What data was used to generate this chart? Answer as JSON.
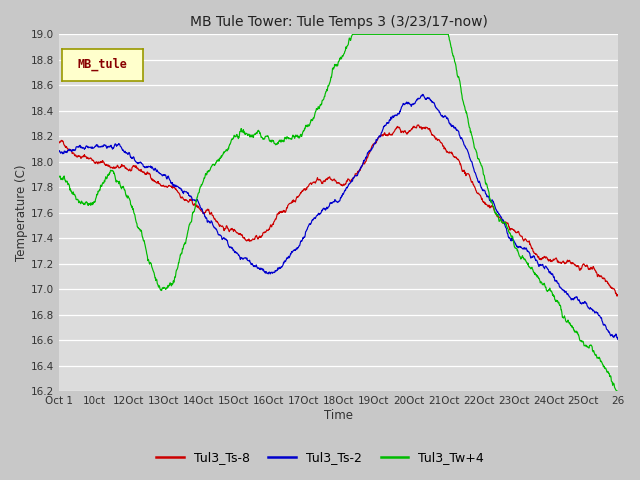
{
  "title": "MB Tule Tower: Tule Temps 3 (3/23/17-now)",
  "xlabel": "Time",
  "ylabel": "Temperature (C)",
  "ylim": [
    16.2,
    19.0
  ],
  "fig_bg": "#c8c8c8",
  "plot_bg": "#dcdcdc",
  "grid_color": "white",
  "legend_labels": [
    "Tul3_Ts-8",
    "Tul3_Ts-2",
    "Tul3_Tw+4"
  ],
  "line_colors": [
    "#cc0000",
    "#0000cc",
    "#00bb00"
  ],
  "inset_label": "MB_tule",
  "inset_bg": "#ffffcc",
  "inset_border": "#999900",
  "inset_text_color": "#880000",
  "yticks": [
    16.2,
    16.4,
    16.6,
    16.8,
    17.0,
    17.2,
    17.4,
    17.6,
    17.8,
    18.0,
    18.2,
    18.4,
    18.6,
    18.8,
    19.0
  ],
  "xtick_labels": [
    "Oct 1",
    "10ct",
    "12Oct",
    "13Oct",
    "14Oct",
    "15Oct",
    "16Oct",
    "17Oct",
    "18Oct",
    "19Oct",
    "20Oct",
    "21Oct",
    "22Oct",
    "23Oct",
    "24Oct",
    "25Oct",
    "26"
  ],
  "n_points": 1600,
  "seed": 42
}
